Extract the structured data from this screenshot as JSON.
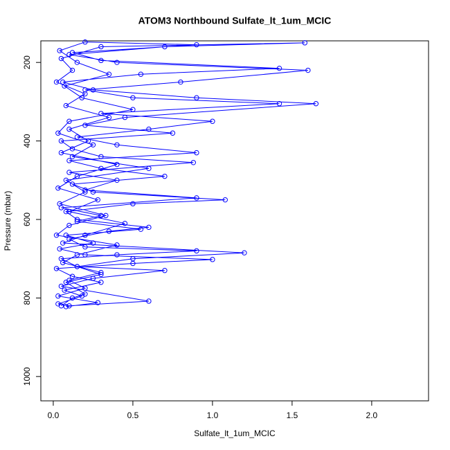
{
  "chart_data": {
    "type": "line",
    "markers": "open-circle",
    "title": "ATOM3 Northbound Sulfate_lt_1um_MCIC",
    "x_label": "Sulfate_lt_1um_MCIC",
    "y_label": "Pressure (mbar)",
    "xlim": [
      -0.078,
      2.357
    ],
    "ylim": [
      1062,
      145
    ],
    "xticks": [
      {
        "value": 0,
        "label": "0.0"
      },
      0.5,
      {
        "value": 1,
        "label": "1.0"
      },
      1.5,
      {
        "value": 2,
        "label": "2.0"
      }
    ],
    "yticks": [
      200,
      400,
      600,
      800,
      1000
    ],
    "grid": false,
    "series": [
      {
        "color": "#0000ff",
        "x": [
          0.05,
          0.12,
          0.2,
          0.08,
          0.3,
          0.15,
          0.05,
          0.4,
          0.9,
          0.2,
          0.1,
          0.35,
          0.6,
          0.15,
          0.08,
          0.5,
          1.08,
          0.25,
          0.12,
          0.7,
          0.3,
          0.1,
          0.9,
          0.4,
          0.15,
          0.6,
          1.0,
          0.3,
          1.42,
          0.5,
          0.2,
          0.8,
          1.6,
          0.4,
          0.1,
          0.7,
          1.58,
          0.3,
          0.05,
          0.12,
          0.02,
          0.2,
          0.08,
          0.35,
          0.1,
          0.22,
          0.05,
          0.4,
          0.15,
          0.03,
          0.28,
          0.1,
          0.45,
          0.2,
          0.06,
          1.2,
          0.5,
          0.15,
          0.7,
          0.25,
          0.05,
          0.6,
          0.1,
          0.03,
          0.18,
          0.07,
          0.3,
          0.12,
          0.02,
          0.5,
          1.0,
          0.2,
          0.04,
          0.25,
          0.08,
          0.55,
          0.15,
          0.3,
          0.05,
          0.9,
          0.2,
          0.4,
          0.1,
          0.88,
          0.3,
          0.12,
          0.05,
          0.75,
          0.2,
          0.45,
          1.65,
          0.9,
          0.25,
          0.06,
          0.55,
          1.42,
          0.3,
          0.12,
          0.9,
          0.2,
          0.04,
          0.15,
          0.35,
          0.07,
          0.18,
          0.5,
          0.1,
          0.03,
          0.25,
          0.12,
          0.6,
          0.08,
          0.2,
          0.04,
          0.33,
          0.1,
          0.02,
          0.4,
          0.15,
          0.06,
          0.3,
          0.1,
          0.2,
          0.03,
          0.28,
          0.08
        ],
        "values": [
          820,
          800,
          790,
          760,
          740,
          720,
          700,
          690,
          680,
          670,
          650,
          630,
          620,
          600,
          580,
          560,
          550,
          530,
          510,
          490,
          470,
          450,
          430,
          410,
          390,
          370,
          350,
          330,
          305,
          290,
          270,
          250,
          220,
          200,
          180,
          160,
          150,
          160,
          190,
          220,
          250,
          280,
          310,
          340,
          370,
          400,
          430,
          460,
          490,
          520,
          550,
          580,
          610,
          640,
          660,
          685,
          700,
          720,
          730,
          750,
          770,
          808,
          820,
          815,
          795,
          780,
          760,
          745,
          725,
          712,
          702,
          690,
          675,
          660,
          640,
          625,
          605,
          590,
          570,
          545,
          525,
          500,
          480,
          455,
          440,
          420,
          400,
          380,
          360,
          340,
          305,
          290,
          270,
          250,
          230,
          215,
          195,
          175,
          155,
          148,
          170,
          200,
          230,
          260,
          290,
          320,
          350,
          380,
          410,
          440,
          470,
          500,
          530,
          560,
          590,
          615,
          640,
          665,
          690,
          710,
          735,
          755,
          775,
          795,
          812,
          822
        ]
      }
    ]
  }
}
